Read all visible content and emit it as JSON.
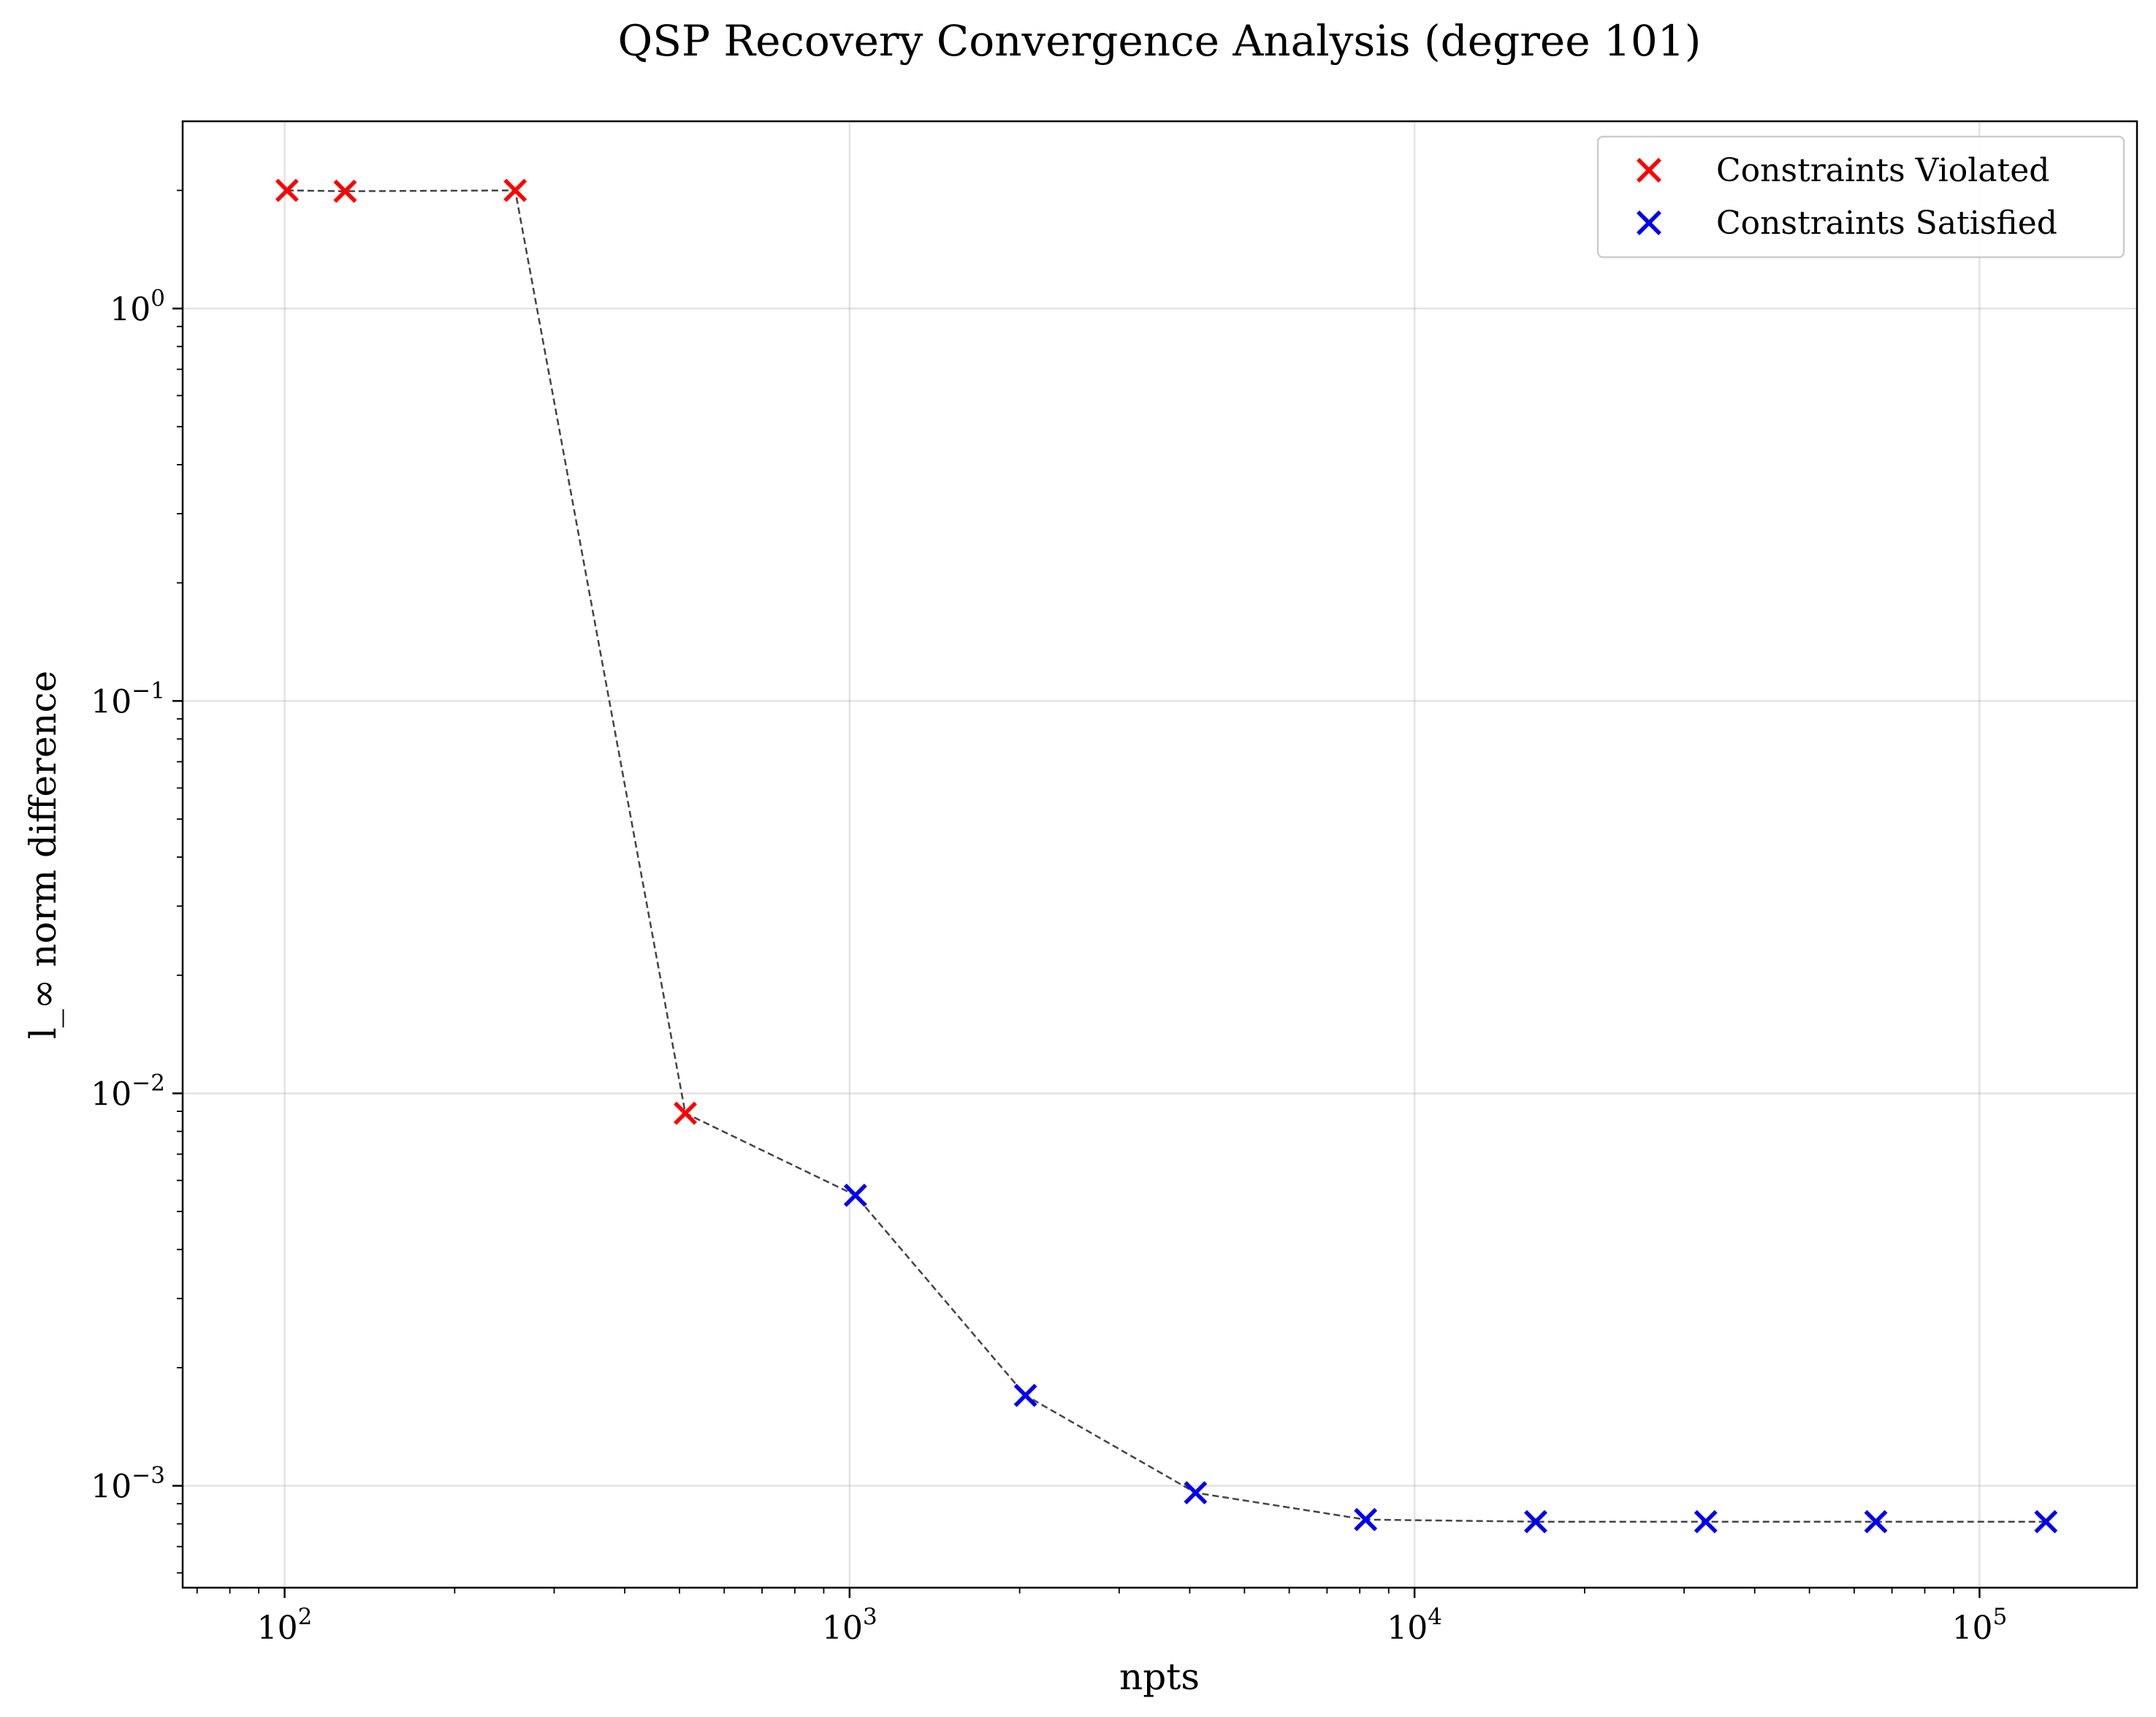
{
  "chart_data": {
    "type": "scatter",
    "title": "QSP Recovery Convergence Analysis (degree 101)",
    "xlabel": "npts",
    "ylabel": "l_∞ norm difference",
    "xscale": "log",
    "yscale": "log",
    "xlim": [
      66,
      190000
    ],
    "ylim": [
      0.00055,
      3.0
    ],
    "grid": true,
    "legend_position": "top-right",
    "x_ticks": [
      {
        "value": 100,
        "base": "10",
        "exp": "2"
      },
      {
        "value": 1000,
        "base": "10",
        "exp": "3"
      },
      {
        "value": 10000,
        "base": "10",
        "exp": "4"
      },
      {
        "value": 100000,
        "base": "10",
        "exp": "5"
      }
    ],
    "y_ticks": [
      {
        "value": 1,
        "base": "10",
        "exp": "0"
      },
      {
        "value": 0.1,
        "base": "10",
        "exp": "−1"
      },
      {
        "value": 0.01,
        "base": "10",
        "exp": "−2"
      },
      {
        "value": 0.001,
        "base": "10",
        "exp": "−3"
      }
    ],
    "connector_line": {
      "style": "dashed",
      "color": "#444444"
    },
    "series": [
      {
        "name": "Constraints Violated",
        "color": "#ff0000",
        "marker": "x",
        "points": [
          {
            "x": 101,
            "y": 2.0
          },
          {
            "x": 128,
            "y": 1.99
          },
          {
            "x": 256,
            "y": 2.0
          },
          {
            "x": 512,
            "y": 0.0089
          }
        ]
      },
      {
        "name": "Constraints Satisfied",
        "color": "#0000ee",
        "marker": "x",
        "points": [
          {
            "x": 1024,
            "y": 0.0055
          },
          {
            "x": 2048,
            "y": 0.0017
          },
          {
            "x": 4096,
            "y": 0.00096
          },
          {
            "x": 8192,
            "y": 0.00082
          },
          {
            "x": 16384,
            "y": 0.00081
          },
          {
            "x": 32768,
            "y": 0.00081
          },
          {
            "x": 65536,
            "y": 0.00081
          },
          {
            "x": 131072,
            "y": 0.00081
          }
        ]
      }
    ]
  }
}
